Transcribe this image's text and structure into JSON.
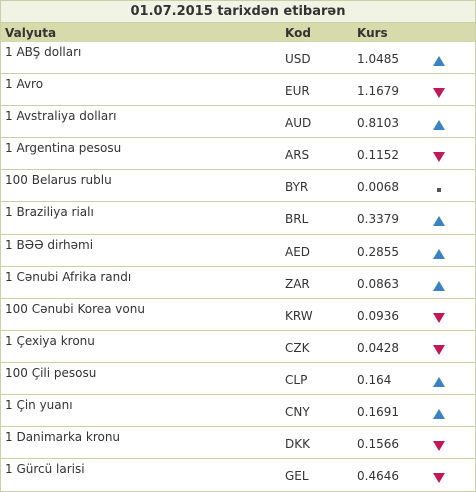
{
  "title": "01.07.2015 tarixdən etibarən",
  "columns": {
    "name": "Valyuta",
    "code": "Kod",
    "rate": "Kurs"
  },
  "rows": [
    {
      "name": "1 ABŞ dolları",
      "code": "USD",
      "rate": "1.0485",
      "trend": "up"
    },
    {
      "name": "1 Avro",
      "code": "EUR",
      "rate": "1.1679",
      "trend": "down"
    },
    {
      "name": "1 Avstraliya dolları",
      "code": "AUD",
      "rate": "0.8103",
      "trend": "up"
    },
    {
      "name": "1 Argentina pesosu",
      "code": "ARS",
      "rate": "0.1152",
      "trend": "down"
    },
    {
      "name": "100 Belarus rublu",
      "code": "BYR",
      "rate": "0.0068",
      "trend": "same"
    },
    {
      "name": "1 Braziliya rialı",
      "code": "BRL",
      "rate": "0.3379",
      "trend": "up"
    },
    {
      "name": "1 BƏƏ dirhəmi",
      "code": "AED",
      "rate": "0.2855",
      "trend": "up"
    },
    {
      "name": "1 Cənubi Afrika randı",
      "code": "ZAR",
      "rate": "0.0863",
      "trend": "up"
    },
    {
      "name": "100 Cənubi Korea vonu",
      "code": "KRW",
      "rate": "0.0936",
      "trend": "down"
    },
    {
      "name": "1 Çexiya kronu",
      "code": "CZK",
      "rate": "0.0428",
      "trend": "down"
    },
    {
      "name": "100 Çili pesosu",
      "code": "CLP",
      "rate": "0.164",
      "trend": "up"
    },
    {
      "name": "1 Çin yuanı",
      "code": "CNY",
      "rate": "0.1691",
      "trend": "up"
    },
    {
      "name": "1 Danimarka kronu",
      "code": "DKK",
      "rate": "0.1566",
      "trend": "down"
    },
    {
      "name": "1 Gürcü larisi",
      "code": "GEL",
      "rate": "0.4646",
      "trend": "down"
    }
  ],
  "icons": {
    "up": "arrow-up-icon",
    "down": "arrow-down-icon",
    "same": "square-dot-icon"
  },
  "colors": {
    "up": "#3b82c4",
    "down": "#c2185b",
    "header_bg": "#d6dbab"
  }
}
